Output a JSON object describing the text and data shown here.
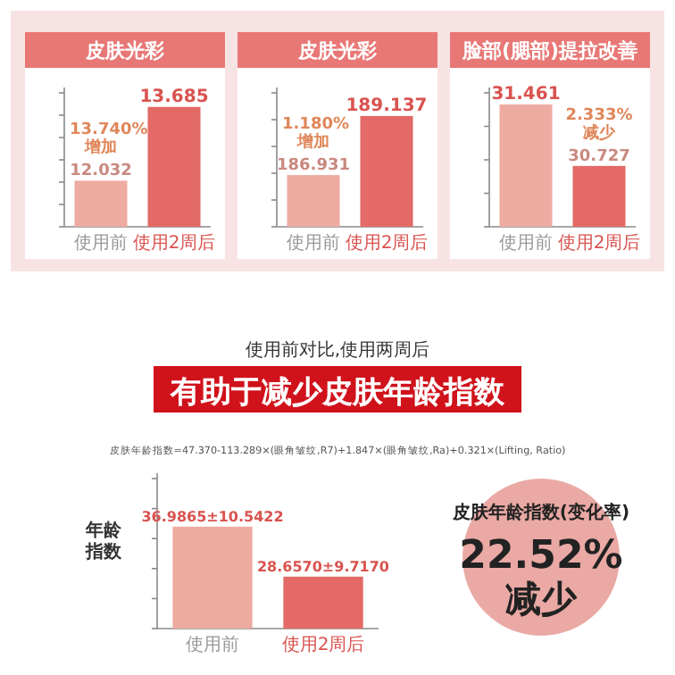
{
  "chart_data": [
    {
      "type": "bar",
      "title": "皮肤光彩",
      "categories": [
        "使用前",
        "使用2周后"
      ],
      "values": [
        12.032,
        13.685
      ],
      "colors": [
        "#eeaba2",
        "#e36a66"
      ],
      "ylim": [
        11,
        14
      ],
      "yticks": [
        {
          "value": 11,
          "label": null
        },
        {
          "value": 11.5,
          "label": null
        },
        {
          "value": 12,
          "label": null
        },
        {
          "value": 12.5,
          "label": null
        },
        {
          "value": 13,
          "label": null
        },
        {
          "value": 13.5,
          "label": null
        },
        {
          "value": 14,
          "label": null
        }
      ],
      "tick_labels": "x",
      "data_labels": true,
      "annotations": [
        "13.740%",
        "增加"
      ]
    },
    {
      "type": "bar",
      "title": "皮肤光彩",
      "categories": [
        "使用前",
        "使用2周后"
      ],
      "values": [
        186.931,
        189.137
      ],
      "colors": [
        "#eeaba2",
        "#e36a66"
      ],
      "ylim": [
        185,
        190
      ],
      "yticks": [
        {
          "value": 185,
          "label": null
        },
        {
          "value": 186,
          "label": null
        },
        {
          "value": 187,
          "label": null
        },
        {
          "value": 188,
          "label": null
        },
        {
          "value": 189,
          "label": null
        },
        {
          "value": 190,
          "label": null
        }
      ],
      "tick_labels": "x",
      "data_labels": true,
      "annotations": [
        "1.180%",
        "增加"
      ]
    },
    {
      "type": "bar",
      "title": "脸部(腮部)提拉改善",
      "categories": [
        "使用前",
        "使用2周后"
      ],
      "values": [
        31.461,
        30.727
      ],
      "colors": [
        "#eeaba2",
        "#e36a66"
      ],
      "ylim": [
        30,
        31.6
      ],
      "yticks": [
        {
          "value": 30,
          "label": null
        },
        {
          "value": 30.4,
          "label": null
        },
        {
          "value": 30.8,
          "label": null
        },
        {
          "value": 31.2,
          "label": null
        },
        {
          "value": 31.6,
          "label": null
        }
      ],
      "tick_labels": "x",
      "data_labels": true,
      "annotations": [
        "2.333%",
        "减少"
      ]
    },
    {
      "type": "bar",
      "title": "有助于减少皮肤年龄指数",
      "subtitle": "使用前对比,使用两周后",
      "ylabel": "年龄指数",
      "categories": [
        "使用前",
        "使用2周后"
      ],
      "values": [
        36.9865,
        28.657
      ],
      "value_labels": [
        "36.9865±10.5422",
        "28.6570±9.7170"
      ],
      "colors": [
        "#eeaba2",
        "#e36a66"
      ],
      "ylim": [
        20,
        45
      ],
      "yticks": [
        {
          "value": 20,
          "label": null
        },
        {
          "value": 25,
          "label": null
        },
        {
          "value": 30,
          "label": null
        },
        {
          "value": 35,
          "label": null
        },
        {
          "value": 40,
          "label": null
        },
        {
          "value": 45,
          "label": null
        }
      ],
      "tick_labels": "x",
      "annotations": [
        "皮肤年龄指数=47.370-113.289×(眼角皱纹,R7)+1.847×(眼角皱纹,Ra)+0.321×(Lifting, Ratio)",
        "皮肤年龄指数(变化率)",
        "22.52%",
        "减少"
      ]
    }
  ]
}
